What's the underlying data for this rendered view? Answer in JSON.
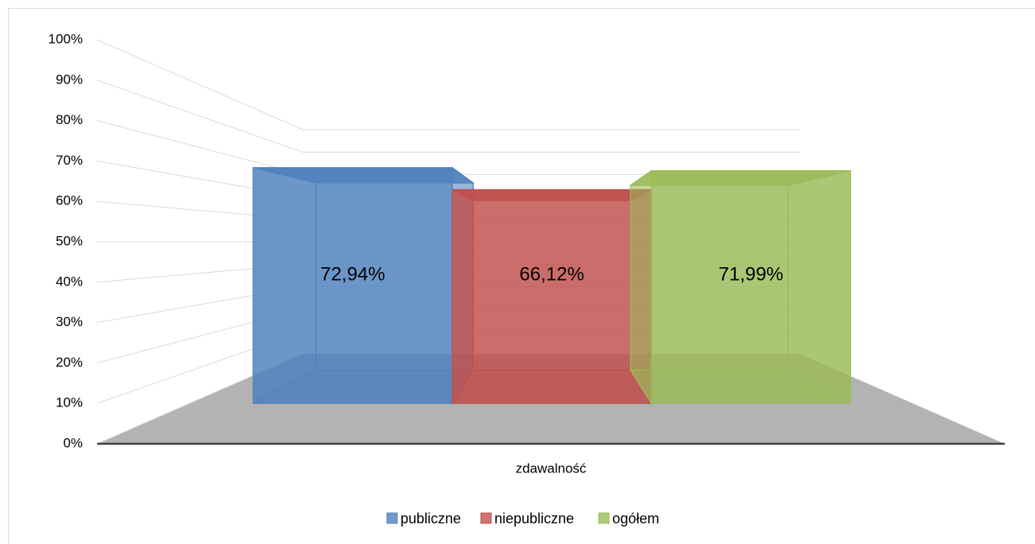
{
  "chart_data": {
    "type": "bar3d",
    "categories": [
      "zdawalność"
    ],
    "series": [
      {
        "name": "publiczne",
        "color": "#4f81bd",
        "values": [
          72.94
        ],
        "value_labels": [
          "72,94%"
        ]
      },
      {
        "name": "niepubliczne",
        "color": "#c0504d",
        "values": [
          66.12
        ],
        "value_labels": [
          "66,12%"
        ]
      },
      {
        "name": "ogółem",
        "color": "#9bbb59",
        "values": [
          71.99
        ],
        "value_labels": [
          "71,99%"
        ]
      }
    ],
    "ylim": [
      0,
      100
    ],
    "yticks": [
      {
        "value": 0,
        "label": "0%"
      },
      {
        "value": 10,
        "label": "10%"
      },
      {
        "value": 20,
        "label": "20%"
      },
      {
        "value": 30,
        "label": "30%"
      },
      {
        "value": 40,
        "label": "40%"
      },
      {
        "value": 50,
        "label": "50%"
      },
      {
        "value": 60,
        "label": "60%"
      },
      {
        "value": 70,
        "label": "70%"
      },
      {
        "value": 80,
        "label": "80%"
      },
      {
        "value": 90,
        "label": "90%"
      },
      {
        "value": 100,
        "label": "100%"
      }
    ],
    "grid": true,
    "legend": "bottom"
  }
}
